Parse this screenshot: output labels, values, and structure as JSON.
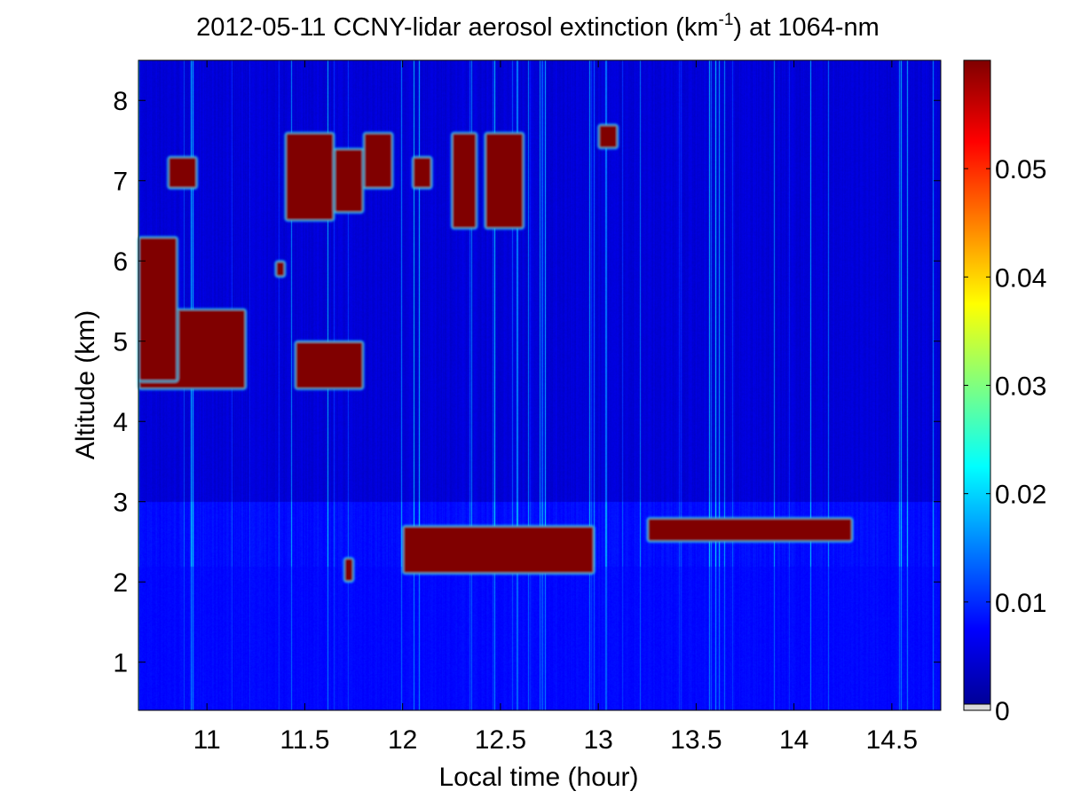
{
  "chart_data": {
    "type": "heatmap",
    "title": {
      "prefix": "2012-05-11 CCNY-lidar aerosol extinction (km",
      "superscript": "-1",
      "suffix": ") at 1064-nm"
    },
    "xlabel": "Local time (hour)",
    "ylabel": "Altitude (km)",
    "xlim": [
      10.65,
      14.75
    ],
    "ylim": [
      0.4,
      8.5
    ],
    "x_ticks": [
      11,
      11.5,
      12,
      12.5,
      13,
      13.5,
      14,
      14.5
    ],
    "x_tick_labels": [
      "11",
      "11.5",
      "12",
      "12.5",
      "13",
      "13.5",
      "14",
      "14.5"
    ],
    "y_ticks": [
      1,
      2,
      3,
      4,
      5,
      6,
      7,
      8
    ],
    "y_tick_labels": [
      "1",
      "2",
      "3",
      "4",
      "5",
      "6",
      "7",
      "8"
    ],
    "colorbar": {
      "colormap": "jet",
      "range": [
        0,
        0.06
      ],
      "ticks": [
        0,
        0.01,
        0.02,
        0.03,
        0.04,
        0.05
      ],
      "tick_labels": [
        "0",
        "0.01",
        "0.02",
        "0.03",
        "0.04",
        "0.05"
      ]
    },
    "background_value": 0.004,
    "features": [
      {
        "name": "aloft aerosol layer",
        "x": [
          10.65,
          11.2
        ],
        "y": [
          4.4,
          5.4
        ],
        "value": 0.06
      },
      {
        "name": "aloft aerosol column",
        "x": [
          10.65,
          10.85
        ],
        "y": [
          4.5,
          6.3
        ],
        "value": 0.06
      },
      {
        "name": "aloft aerosol layer",
        "x": [
          11.45,
          11.8
        ],
        "y": [
          4.4,
          5.0
        ],
        "value": 0.06
      },
      {
        "name": "cirrus patch",
        "x": [
          10.8,
          10.95
        ],
        "y": [
          6.9,
          7.3
        ],
        "value": 0.06
      },
      {
        "name": "cirrus patch",
        "x": [
          11.4,
          11.65
        ],
        "y": [
          6.5,
          7.6
        ],
        "value": 0.06
      },
      {
        "name": "cirrus patch",
        "x": [
          11.65,
          11.8
        ],
        "y": [
          6.6,
          7.4
        ],
        "value": 0.06
      },
      {
        "name": "cirrus patch",
        "x": [
          11.8,
          11.95
        ],
        "y": [
          6.9,
          7.6
        ],
        "value": 0.06
      },
      {
        "name": "cirrus patch",
        "x": [
          12.05,
          12.15
        ],
        "y": [
          6.9,
          7.3
        ],
        "value": 0.06
      },
      {
        "name": "cirrus patch",
        "x": [
          12.25,
          12.38
        ],
        "y": [
          6.4,
          7.6
        ],
        "value": 0.06
      },
      {
        "name": "cirrus patch",
        "x": [
          12.42,
          12.62
        ],
        "y": [
          6.4,
          7.6
        ],
        "value": 0.06
      },
      {
        "name": "cirrus patch",
        "x": [
          13.0,
          13.1
        ],
        "y": [
          7.4,
          7.7
        ],
        "value": 0.06
      },
      {
        "name": "cirrus patch",
        "x": [
          11.35,
          11.4
        ],
        "y": [
          5.8,
          6.0
        ],
        "value": 0.06
      },
      {
        "name": "boundary-layer top",
        "x": [
          12.0,
          12.98
        ],
        "y": [
          2.1,
          2.7
        ],
        "value": 0.06
      },
      {
        "name": "boundary-layer top",
        "x": [
          13.25,
          14.3
        ],
        "y": [
          2.5,
          2.8
        ],
        "value": 0.06
      },
      {
        "name": "boundary-layer top",
        "x": [
          11.7,
          11.75
        ],
        "y": [
          2.0,
          2.3
        ],
        "value": 0.06
      }
    ],
    "grid": false,
    "legend": "colorbar-right"
  }
}
